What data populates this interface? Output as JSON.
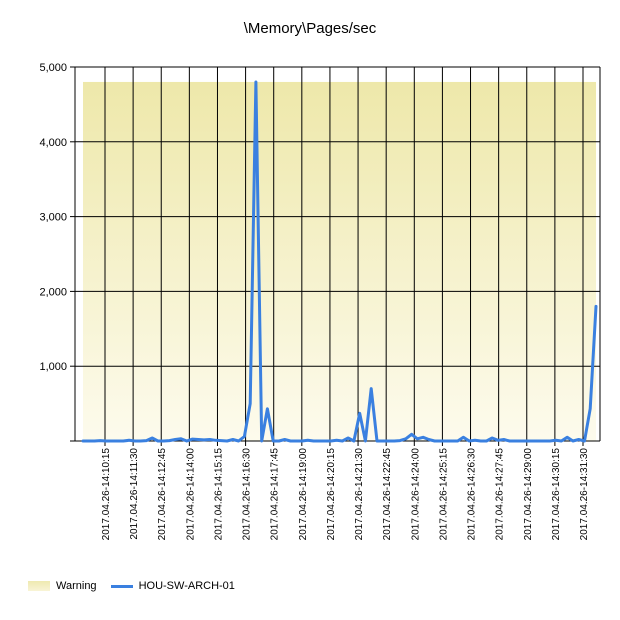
{
  "chart_data": {
    "type": "line",
    "title": "\\Memory\\Pages/sec",
    "xlabel": "",
    "ylabel": "",
    "ylim": [
      0,
      5000
    ],
    "yticks": [
      0,
      1000,
      2000,
      3000,
      4000,
      5000
    ],
    "ytick_labels": [
      "",
      "1,000",
      "2,000",
      "3,000",
      "4,000",
      "5,000"
    ],
    "xtick_labels": [
      "2017.04.26-14:10:15",
      "2017.04.26-14:11:30",
      "2017.04.26-14:12:45",
      "2017.04.26-14:14:00",
      "2017.04.26-14:15:15",
      "2017.04.26-14:16:30",
      "2017.04.26-14:17:45",
      "2017.04.26-14:19:00",
      "2017.04.26-14:20:15",
      "2017.04.26-14:21:30",
      "2017.04.26-14:22:45",
      "2017.04.26-14:24:00",
      "2017.04.26-14:25:15",
      "2017.04.26-14:26:30",
      "2017.04.26-14:27:45",
      "2017.04.26-14:29:00",
      "2017.04.26-14:30:15",
      "2017.04.26-14:31:30"
    ],
    "grid": true,
    "legend_position": "bottom-left",
    "warning_band": {
      "name": "Warning",
      "from": 0,
      "to": 4800,
      "color": "#eee8aa"
    },
    "series": [
      {
        "name": "HOU-SW-ARCH-01",
        "color": "#3a80e0",
        "values": [
          0,
          0,
          0,
          5,
          0,
          0,
          0,
          0,
          10,
          0,
          0,
          5,
          40,
          0,
          0,
          5,
          20,
          30,
          0,
          25,
          20,
          15,
          20,
          10,
          5,
          0,
          20,
          0,
          60,
          500,
          4800,
          0,
          430,
          0,
          0,
          20,
          0,
          0,
          0,
          10,
          0,
          0,
          0,
          0,
          10,
          0,
          40,
          0,
          370,
          0,
          700,
          0,
          0,
          0,
          0,
          5,
          30,
          90,
          30,
          50,
          20,
          0,
          0,
          0,
          0,
          0,
          50,
          0,
          10,
          0,
          0,
          40,
          10,
          20,
          0,
          0,
          0,
          0,
          0,
          0,
          0,
          0,
          10,
          0,
          50,
          0,
          20,
          0,
          430,
          1800
        ]
      }
    ]
  }
}
